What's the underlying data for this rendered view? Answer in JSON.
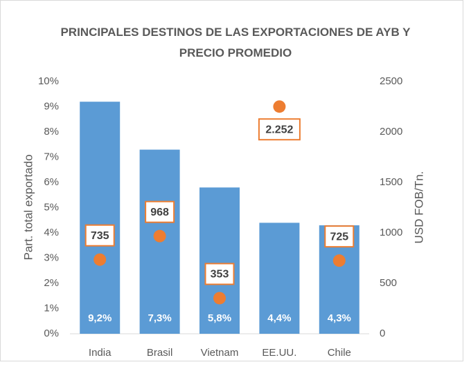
{
  "chart_data": {
    "type": "bar",
    "title": "PRINCIPALES DESTINOS DE LAS EXPORTACIONES DE AYB Y PRECIO PROMEDIO",
    "ylabel": "Part. total exportado",
    "y2label": "USD FOB/Tn.",
    "categories": [
      "India",
      "Brasil",
      "Vietnam",
      "EE.UU.",
      "Chile"
    ],
    "series": [
      {
        "type": "bar",
        "color": "#5b9bd5",
        "values": [
          9.2,
          7.3,
          5.8,
          4.4,
          4.3
        ],
        "value_labels": [
          "9,2%",
          "7,3%",
          "5,8%",
          "4,4%",
          "4,3%"
        ]
      },
      {
        "type": "scatter",
        "axis": "y2",
        "color": "#ed7d31",
        "values": [
          735,
          968,
          353,
          2252,
          725
        ],
        "value_labels": [
          "735",
          "968",
          "353",
          "2.252",
          "725"
        ]
      }
    ],
    "ylim": [
      0,
      10
    ],
    "yticks": [
      {
        "value": 0,
        "label": "0%"
      },
      {
        "value": 1,
        "label": "1%"
      },
      {
        "value": 2,
        "label": "2%"
      },
      {
        "value": 3,
        "label": "3%"
      },
      {
        "value": 4,
        "label": "4%"
      },
      {
        "value": 5,
        "label": "5%"
      },
      {
        "value": 6,
        "label": "6%"
      },
      {
        "value": 7,
        "label": "7%"
      },
      {
        "value": 8,
        "label": "8%"
      },
      {
        "value": 9,
        "label": "9%"
      },
      {
        "value": 10,
        "label": "10%"
      }
    ],
    "y2lim": [
      0,
      2500
    ],
    "y2ticks": [
      0,
      500,
      1000,
      1500,
      2000,
      2500
    ]
  }
}
